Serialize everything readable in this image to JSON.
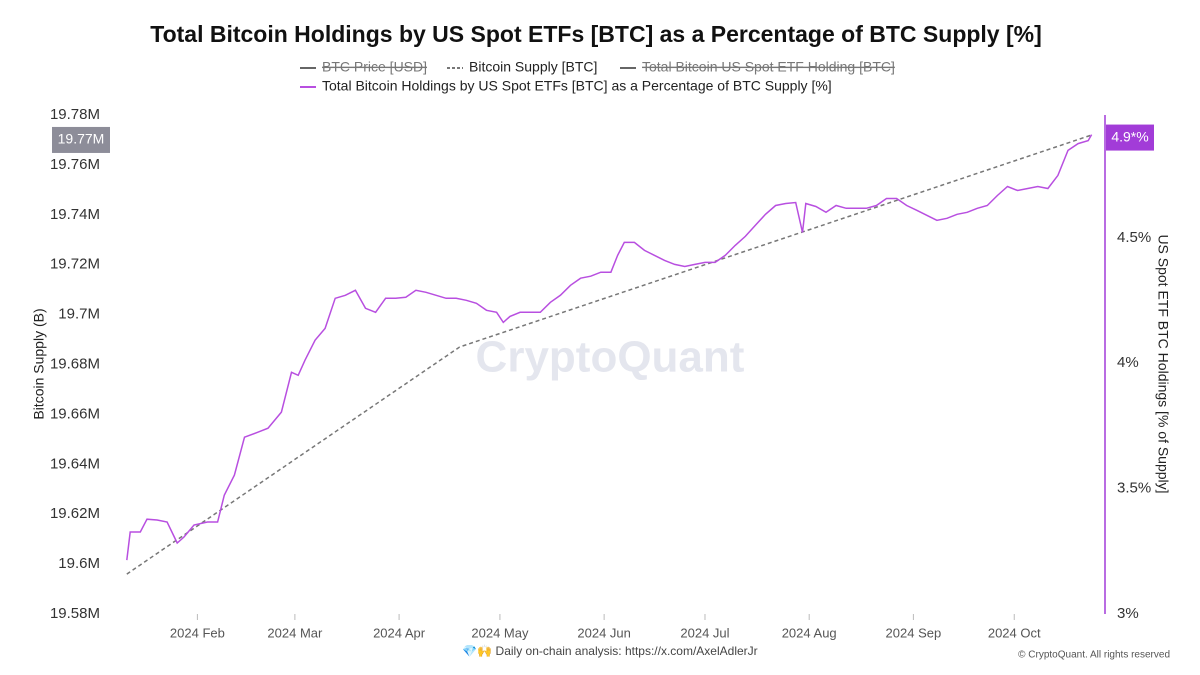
{
  "chart_data": {
    "type": "line",
    "title": "Total Bitcoin Holdings by US Spot ETFs [BTC] as a Percentage of BTC Supply [%]",
    "y_label": "Bitcoin Supply (B)",
    "y2_label": "US Spot ETF BTC Holdings [% of Supply]",
    "watermark": "CryptoQuant",
    "footer": "💎🙌 Daily on-chain analysis: https://x.com/AxelAdlerJr",
    "copyright": "© CryptoQuant. All rights reserved",
    "xlim": [
      6,
      302
    ],
    "xticks": [
      {
        "value": 32,
        "label": "2024 Feb"
      },
      {
        "value": 61,
        "label": "2024 Mar"
      },
      {
        "value": 92,
        "label": "2024 Apr"
      },
      {
        "value": 122,
        "label": "2024 May"
      },
      {
        "value": 153,
        "label": "2024 Jun"
      },
      {
        "value": 183,
        "label": "2024 Jul"
      },
      {
        "value": 214,
        "label": "2024 Aug"
      },
      {
        "value": 245,
        "label": "2024 Sep"
      },
      {
        "value": 275,
        "label": "2024 Oct"
      }
    ],
    "ylim": [
      19.58,
      19.78
    ],
    "yticks": [
      {
        "value": 19.58,
        "label": "19.58M"
      },
      {
        "value": 19.6,
        "label": "19.6M"
      },
      {
        "value": 19.62,
        "label": "19.62M"
      },
      {
        "value": 19.64,
        "label": "19.64M"
      },
      {
        "value": 19.66,
        "label": "19.66M"
      },
      {
        "value": 19.68,
        "label": "19.68M"
      },
      {
        "value": 19.7,
        "label": "19.7M"
      },
      {
        "value": 19.72,
        "label": "19.72M"
      },
      {
        "value": 19.74,
        "label": "19.74M"
      },
      {
        "value": 19.76,
        "label": "19.76M"
      },
      {
        "value": 19.78,
        "label": "19.78M"
      }
    ],
    "y2lim": [
      3,
      4.99
    ],
    "y2ticks": [
      {
        "value": 3,
        "label": "3%"
      },
      {
        "value": 3.5,
        "label": "3.5%"
      },
      {
        "value": 4,
        "label": "4%"
      },
      {
        "value": 4.5,
        "label": "4.5%"
      }
    ],
    "annotations": [
      {
        "text": "19.77M",
        "value": 19.77,
        "axis": "y"
      },
      {
        "text": "4.9*%",
        "value": 4.9,
        "axis": "y2"
      }
    ],
    "series": [
      {
        "name": "BTC Price [USD]",
        "color": "#666666",
        "hidden": true
      },
      {
        "name": "Bitcoin Supply [BTC]",
        "color": "#777777",
        "dash": true,
        "x": [
          11,
          110,
          298
        ],
        "values": [
          19.596,
          19.687,
          19.772
        ]
      },
      {
        "name": "Total Bitcoin US Spot ETF Holding [BTC]",
        "color": "#666666",
        "hidden": true
      },
      {
        "name": "Total Bitcoin Holdings by US Spot ETFs [BTC] as a Percentage of BTC Supply [%]",
        "color": "#b84fe0",
        "axis": "y2",
        "x": [
          11,
          12,
          15,
          17,
          20,
          23,
          26,
          28,
          31,
          35,
          38,
          40,
          43,
          46,
          50,
          53,
          57,
          60,
          62,
          64,
          67,
          70,
          73,
          76,
          79,
          82,
          85,
          88,
          91,
          94,
          97,
          100,
          103,
          106,
          109,
          112,
          115,
          118,
          121,
          123,
          125,
          128,
          131,
          134,
          137,
          140,
          143,
          146,
          149,
          152,
          155,
          157,
          159,
          162,
          165,
          168,
          171,
          174,
          177,
          180,
          183,
          186,
          189,
          192,
          195,
          198,
          201,
          204,
          207,
          210,
          212,
          213,
          216,
          219,
          222,
          225,
          228,
          231,
          234,
          237,
          240,
          243,
          246,
          249,
          252,
          255,
          258,
          261,
          264,
          267,
          270,
          273,
          276,
          279,
          282,
          285,
          288,
          291,
          294,
          297,
          298
        ],
        "values": [
          3.215,
          3.327,
          3.327,
          3.378,
          3.375,
          3.367,
          3.283,
          3.307,
          3.355,
          3.367,
          3.367,
          3.474,
          3.554,
          3.705,
          3.725,
          3.741,
          3.805,
          3.964,
          3.952,
          4.012,
          4.092,
          4.139,
          4.259,
          4.271,
          4.291,
          4.219,
          4.203,
          4.259,
          4.259,
          4.263,
          4.291,
          4.283,
          4.271,
          4.259,
          4.259,
          4.251,
          4.239,
          4.211,
          4.203,
          4.163,
          4.187,
          4.203,
          4.203,
          4.203,
          4.243,
          4.271,
          4.311,
          4.339,
          4.347,
          4.363,
          4.363,
          4.43,
          4.482,
          4.482,
          4.45,
          4.43,
          4.41,
          4.394,
          4.386,
          4.394,
          4.402,
          4.402,
          4.43,
          4.47,
          4.506,
          4.55,
          4.594,
          4.629,
          4.637,
          4.641,
          4.522,
          4.637,
          4.625,
          4.602,
          4.629,
          4.618,
          4.618,
          4.618,
          4.629,
          4.657,
          4.657,
          4.629,
          4.61,
          4.59,
          4.57,
          4.578,
          4.594,
          4.602,
          4.618,
          4.629,
          4.669,
          4.705,
          4.689,
          4.697,
          4.705,
          4.697,
          4.749,
          4.849,
          4.876,
          4.888,
          4.912
        ]
      }
    ]
  }
}
